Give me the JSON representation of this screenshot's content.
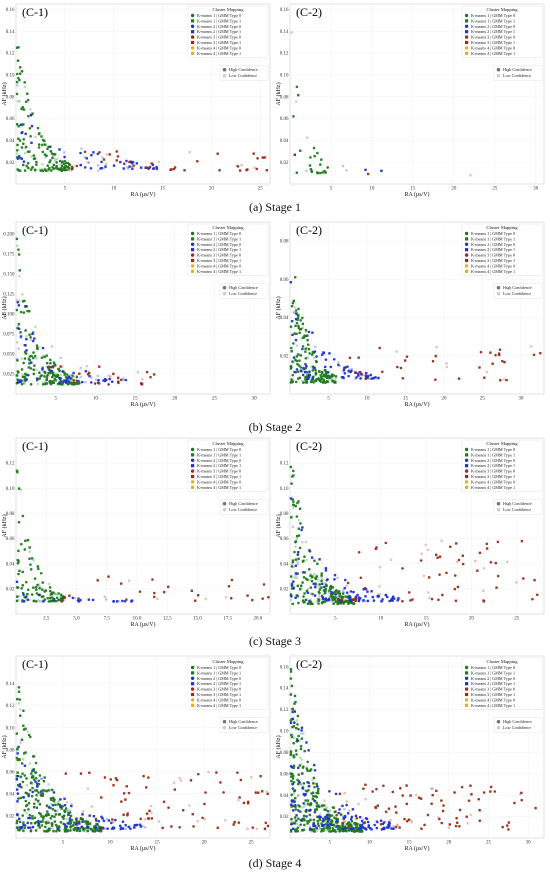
{
  "legend": {
    "title": "Cluster Mapping",
    "entries": [
      {
        "label": "K-means 1 | GMM Type 0",
        "color": "#1f7a1f",
        "shape": "circle"
      },
      {
        "label": "K-means 1 | GMM Type 1",
        "color": "#1f7a1f",
        "shape": "square"
      },
      {
        "label": "K-means 2 | GMM Type 0",
        "color": "#1f2fd6",
        "shape": "circle"
      },
      {
        "label": "K-means 2 | GMM Type 1",
        "color": "#1f2fd6",
        "shape": "square"
      },
      {
        "label": "K-means 3 | GMM Type 0",
        "color": "#9b2d16",
        "shape": "circle"
      },
      {
        "label": "K-means 3 | GMM Type 1",
        "color": "#9b2d16",
        "shape": "square"
      },
      {
        "label": "K-means 4 | GMM Type 0",
        "color": "#e0b21a",
        "shape": "circle"
      },
      {
        "label": "K-means 4 | GMM Type 1",
        "color": "#e0b21a",
        "shape": "square"
      }
    ],
    "confidence": [
      {
        "label": "High Confidence",
        "color": "#777777"
      },
      {
        "label": "Low Confidence",
        "color": "#cfcfcf"
      }
    ]
  },
  "rows": [
    {
      "caption": "(a) Stage 1"
    },
    {
      "caption": "(b) Stage 2"
    },
    {
      "caption": "(c) Stage 3"
    },
    {
      "caption": "(d) Stage 4"
    }
  ],
  "chart_data": [
    {
      "type": "scatter",
      "panel": "(C-1)",
      "stage": "Stage 1",
      "xlabel": "RA (μs/V)",
      "ylabel": "AF (kHz)",
      "xlim": [
        0,
        26
      ],
      "ylim": [
        0,
        0.165
      ],
      "xticks": [
        "5",
        "10",
        "15",
        "20",
        "25"
      ],
      "xtickvals": [
        5,
        10,
        15,
        20,
        25
      ],
      "yticks": [
        "0.02",
        "0.04",
        "0.06",
        "0.08",
        "0.10",
        "0.12",
        "0.14",
        "0.16"
      ],
      "ytickvals": [
        0.02,
        0.04,
        0.06,
        0.08,
        0.1,
        0.12,
        0.14,
        0.16
      ],
      "clusters": [
        {
          "cluster": 1,
          "n": 160,
          "xmax": 6,
          "ymax": 0.14,
          "ybase": 0.012
        },
        {
          "cluster": 2,
          "n": 60,
          "xmax": 15,
          "ymax": 0.1,
          "ybase": 0.014
        },
        {
          "cluster": 3,
          "n": 45,
          "xmax": 26,
          "ymax": 0.03,
          "ybase": 0.012
        }
      ]
    },
    {
      "type": "scatter",
      "panel": "(C-2)",
      "stage": "Stage 1",
      "xlabel": "RA (μs/V)",
      "ylabel": "AF (kHz)",
      "xlim": [
        0,
        31
      ],
      "ylim": [
        0,
        0.165
      ],
      "xticks": [
        "5",
        "10",
        "15",
        "20",
        "25",
        "30"
      ],
      "xtickvals": [
        5,
        10,
        15,
        20,
        25,
        30
      ],
      "yticks": [
        "0.02",
        "0.04",
        "0.06",
        "0.08",
        "0.10",
        "0.12",
        "0.14",
        "0.16"
      ],
      "ytickvals": [
        0.02,
        0.04,
        0.06,
        0.08,
        0.1,
        0.12,
        0.14,
        0.16
      ],
      "clusters": [
        {
          "cluster": 1,
          "n": 25,
          "xmax": 5,
          "ymax": 0.16,
          "ybase": 0.01
        },
        {
          "cluster": 2,
          "n": 6,
          "xmax": 12,
          "ymax": 0.06,
          "ybase": 0.012
        },
        {
          "cluster": 3,
          "n": 2,
          "xmax": 30,
          "ymax": 0.02,
          "ybase": 0.008
        }
      ]
    },
    {
      "type": "scatter",
      "panel": "(C-1)",
      "stage": "Stage 2",
      "xlabel": "RA (μs/V)",
      "ylabel": "AF (kHz)",
      "xlim": [
        0,
        32
      ],
      "ylim": [
        0,
        0.215
      ],
      "xticks": [
        "5",
        "10",
        "15",
        "20",
        "25",
        "30"
      ],
      "xtickvals": [
        5,
        10,
        15,
        20,
        25,
        30
      ],
      "yticks": [
        "0.025",
        "0.050",
        "0.075",
        "0.100",
        "0.125",
        "0.150",
        "0.175",
        "0.200"
      ],
      "ytickvals": [
        0.025,
        0.05,
        0.075,
        0.1,
        0.125,
        0.15,
        0.175,
        0.2
      ],
      "clusters": [
        {
          "cluster": 1,
          "n": 200,
          "xmax": 8,
          "ymax": 0.2,
          "ybase": 0.012
        },
        {
          "cluster": 2,
          "n": 70,
          "xmax": 14,
          "ymax": 0.14,
          "ybase": 0.014
        },
        {
          "cluster": 3,
          "n": 30,
          "xmax": 18,
          "ymax": 0.035,
          "ybase": 0.012
        }
      ]
    },
    {
      "type": "scatter",
      "panel": "(C-2)",
      "stage": "Stage 2",
      "xlabel": "RA (μs/V)",
      "ylabel": "AF (kHz)",
      "xlim": [
        0,
        33
      ],
      "ylim": [
        0,
        0.09
      ],
      "xticks": [
        "5",
        "10",
        "15",
        "20",
        "25",
        "30"
      ],
      "xtickvals": [
        5,
        10,
        15,
        20,
        25,
        30
      ],
      "yticks": [
        "0.02",
        "0.04",
        "0.06",
        "0.08"
      ],
      "ytickvals": [
        0.02,
        0.04,
        0.06,
        0.08
      ],
      "clusters": [
        {
          "cluster": 1,
          "n": 180,
          "xmax": 6,
          "ymax": 0.085,
          "ybase": 0.006
        },
        {
          "cluster": 2,
          "n": 80,
          "xmax": 12,
          "ymax": 0.06,
          "ybase": 0.008
        },
        {
          "cluster": 3,
          "n": 40,
          "xmax": 33,
          "ymax": 0.025,
          "ybase": 0.006
        }
      ]
    },
    {
      "type": "scatter",
      "panel": "(C-1)",
      "stage": "Stage 3",
      "xlabel": "RA (μs/V)",
      "ylabel": "AF (kHz)",
      "xlim": [
        0,
        21
      ],
      "ylim": [
        0,
        0.14
      ],
      "xticks": [
        "2.5",
        "5.0",
        "7.5",
        "10.0",
        "12.5",
        "15.0",
        "17.5",
        "20.0"
      ],
      "xtickvals": [
        2.5,
        5,
        7.5,
        10,
        12.5,
        15,
        17.5,
        20
      ],
      "yticks": [
        "0.02",
        "0.04",
        "0.06",
        "0.08",
        "0.10",
        "0.12"
      ],
      "ytickvals": [
        0.02,
        0.04,
        0.06,
        0.08,
        0.1,
        0.12
      ],
      "clusters": [
        {
          "cluster": 1,
          "n": 110,
          "xmax": 4,
          "ymax": 0.13,
          "ybase": 0.01
        },
        {
          "cluster": 2,
          "n": 30,
          "xmax": 10,
          "ymax": 0.03,
          "ybase": 0.01
        },
        {
          "cluster": 3,
          "n": 30,
          "xmax": 21,
          "ymax": 0.03,
          "ybase": 0.01
        }
      ]
    },
    {
      "type": "scatter",
      "panel": "(C-2)",
      "stage": "Stage 3",
      "xlabel": "RA (μs/V)",
      "ylabel": "AF (kHz)",
      "xlim": [
        0,
        28
      ],
      "ylim": [
        0,
        0.14
      ],
      "xticks": [
        "5",
        "10",
        "15",
        "20",
        "25"
      ],
      "xtickvals": [
        5,
        10,
        15,
        20,
        25
      ],
      "yticks": [
        "0.02",
        "0.04",
        "0.06",
        "0.08",
        "0.10",
        "0.12"
      ],
      "ytickvals": [
        0.02,
        0.04,
        0.06,
        0.08,
        0.1,
        0.12
      ],
      "clusters": [
        {
          "cluster": 1,
          "n": 230,
          "xmax": 7,
          "ymax": 0.13,
          "ybase": 0.008
        },
        {
          "cluster": 2,
          "n": 110,
          "xmax": 12,
          "ymax": 0.1,
          "ybase": 0.01
        },
        {
          "cluster": 3,
          "n": 70,
          "xmax": 28,
          "ymax": 0.06,
          "ybase": 0.01
        }
      ]
    },
    {
      "type": "scatter",
      "panel": "(C-1)",
      "stage": "Stage 4",
      "xlabel": "RA (μs/V)",
      "ylabel": "AF (kHz)",
      "xlim": [
        0,
        27
      ],
      "ylim": [
        0,
        0.165
      ],
      "xticks": [
        "5",
        "10",
        "15",
        "20",
        "25"
      ],
      "xtickvals": [
        5,
        10,
        15,
        20,
        25
      ],
      "yticks": [
        "0.02",
        "0.04",
        "0.06",
        "0.08",
        "0.10",
        "0.12",
        "0.14"
      ],
      "ytickvals": [
        0.02,
        0.04,
        0.06,
        0.08,
        0.1,
        0.12,
        0.14
      ],
      "clusters": [
        {
          "cluster": 1,
          "n": 330,
          "xmax": 9,
          "ymax": 0.15,
          "ybase": 0.006
        },
        {
          "cluster": 2,
          "n": 120,
          "xmax": 14,
          "ymax": 0.1,
          "ybase": 0.008
        },
        {
          "cluster": 3,
          "n": 90,
          "xmax": 27,
          "ymax": 0.06,
          "ybase": 0.008
        }
      ]
    },
    {
      "type": "scatter",
      "panel": "(C-2)",
      "stage": "Stage 4",
      "xlabel": "RA (μs/V)",
      "ylabel": "AF (kHz)",
      "xlim": [
        0,
        32
      ],
      "ylim": [
        0,
        0.17
      ],
      "xticks": [
        "5",
        "10",
        "15",
        "20",
        "25",
        "30"
      ],
      "xtickvals": [
        5,
        10,
        15,
        20,
        25,
        30
      ],
      "yticks": [
        "0.02",
        "0.04",
        "0.06",
        "0.08",
        "0.10",
        "0.12",
        "0.14",
        "0.16"
      ],
      "ytickvals": [
        0.02,
        0.04,
        0.06,
        0.08,
        0.1,
        0.12,
        0.14,
        0.16
      ],
      "clusters": [
        {
          "cluster": 1,
          "n": 380,
          "xmax": 9,
          "ymax": 0.16,
          "ybase": 0.006
        },
        {
          "cluster": 2,
          "n": 140,
          "xmax": 13,
          "ymax": 0.15,
          "ybase": 0.008
        },
        {
          "cluster": 3,
          "n": 90,
          "xmax": 31,
          "ymax": 0.05,
          "ybase": 0.008
        }
      ]
    }
  ]
}
